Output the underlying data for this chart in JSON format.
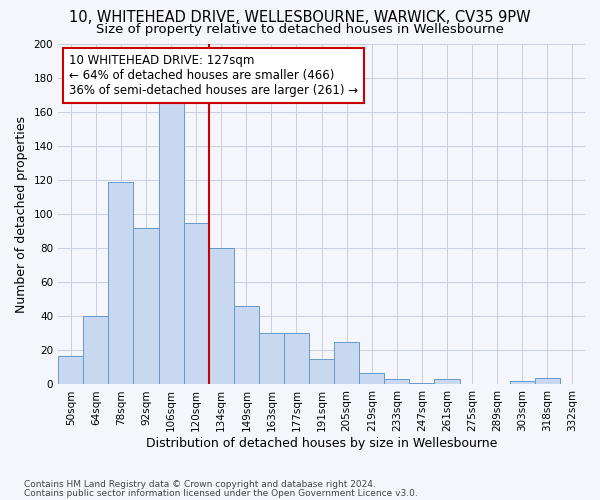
{
  "title": "10, WHITEHEAD DRIVE, WELLESBOURNE, WARWICK, CV35 9PW",
  "subtitle": "Size of property relative to detached houses in Wellesbourne",
  "xlabel": "Distribution of detached houses by size in Wellesbourne",
  "ylabel": "Number of detached properties",
  "footer_line1": "Contains HM Land Registry data © Crown copyright and database right 2024.",
  "footer_line2": "Contains public sector information licensed under the Open Government Licence v3.0.",
  "bar_labels": [
    "50sqm",
    "64sqm",
    "78sqm",
    "92sqm",
    "106sqm",
    "120sqm",
    "134sqm",
    "149sqm",
    "163sqm",
    "177sqm",
    "191sqm",
    "205sqm",
    "219sqm",
    "233sqm",
    "247sqm",
    "261sqm",
    "275sqm",
    "289sqm",
    "303sqm",
    "318sqm",
    "332sqm"
  ],
  "bar_values": [
    17,
    40,
    119,
    92,
    167,
    95,
    80,
    46,
    30,
    30,
    15,
    25,
    7,
    3,
    1,
    3,
    0,
    0,
    2,
    4,
    0
  ],
  "bar_color": "#c8d8f0",
  "bar_edge_color": "#6699cc",
  "vline_x_index": 5.5,
  "annotation_line1": "10 WHITEHEAD DRIVE: 127sqm",
  "annotation_line2": "← 64% of detached houses are smaller (466)",
  "annotation_line3": "36% of semi-detached houses are larger (261) →",
  "annotation_box_facecolor": "#ffffff",
  "annotation_box_edgecolor": "#cc0000",
  "vline_color": "#cc0000",
  "ylim": [
    0,
    200
  ],
  "yticks": [
    0,
    20,
    40,
    60,
    80,
    100,
    120,
    140,
    160,
    180,
    200
  ],
  "grid_color": "#c8d0e0",
  "background_color": "#f4f6fc",
  "title_fontsize": 10.5,
  "subtitle_fontsize": 9.5,
  "ylabel_fontsize": 9,
  "xlabel_fontsize": 9,
  "tick_fontsize": 7.5,
  "footer_fontsize": 6.5,
  "annotation_fontsize": 8.5
}
